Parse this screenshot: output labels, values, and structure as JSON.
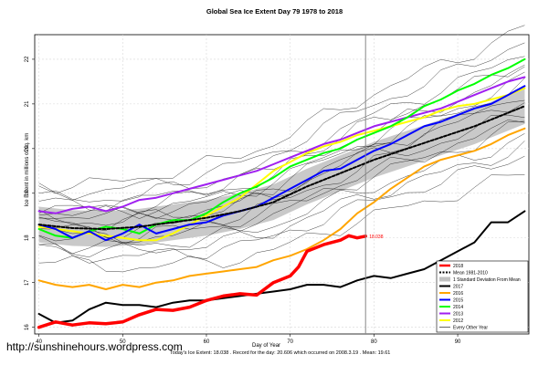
{
  "chart_data": {
    "type": "line",
    "title": "Global Sea Ice Extent Day 79 1978 to 2018",
    "xlabel": "Day of Year",
    "ylabel": "Ice Extent in millions of sq. km",
    "xlim": [
      39.5,
      98.5
    ],
    "ylim": [
      15.85,
      22.55
    ],
    "x_ticks": [
      40,
      50,
      60,
      70,
      80,
      90
    ],
    "y_ticks": [
      16,
      17,
      18,
      19,
      20,
      21,
      22
    ],
    "vline": 79,
    "grid": true,
    "legend_position": "bottom-right",
    "current_label": "18.038",
    "footer": "Today's Ice Extent: 18.038  . Record for the day: 20.606 which occurred on 2008.3.19  . Mean: 19.61",
    "watermark": "http://sunshinehours.wordpress.com",
    "series": [
      {
        "name": "2018",
        "color": "#ff0000",
        "width": 3.5,
        "x": [
          40,
          42,
          44,
          46,
          48,
          50,
          52,
          54,
          56,
          58,
          60,
          62,
          64,
          66,
          68,
          70,
          71,
          72,
          74,
          76,
          77,
          78,
          79
        ],
        "y": [
          16.0,
          16.12,
          16.05,
          16.1,
          16.08,
          16.12,
          16.28,
          16.4,
          16.38,
          16.45,
          16.6,
          16.7,
          16.75,
          16.72,
          17.0,
          17.15,
          17.35,
          17.7,
          17.85,
          17.95,
          18.05,
          18.0,
          18.04
        ]
      },
      {
        "name": "Mean 1981-2010",
        "color": "#000000",
        "width": 2,
        "dash": "3,2",
        "x": [
          40,
          44,
          48,
          52,
          56,
          60,
          64,
          68,
          72,
          76,
          80,
          84,
          88,
          92,
          96,
          98
        ],
        "y": [
          18.3,
          18.22,
          18.2,
          18.25,
          18.35,
          18.45,
          18.6,
          18.8,
          19.15,
          19.45,
          19.75,
          20.0,
          20.25,
          20.5,
          20.8,
          20.95
        ]
      },
      {
        "name": "1 Standard Deviation From Mean",
        "color": "#c0c0c0",
        "band": true,
        "x": [
          40,
          44,
          48,
          52,
          56,
          60,
          64,
          68,
          72,
          76,
          80,
          84,
          88,
          92,
          96,
          98
        ],
        "upper": [
          18.7,
          18.62,
          18.6,
          18.65,
          18.75,
          18.85,
          19.0,
          19.2,
          19.55,
          19.85,
          20.15,
          20.4,
          20.65,
          20.9,
          21.2,
          21.35
        ],
        "lower": [
          17.9,
          17.82,
          17.8,
          17.85,
          17.95,
          18.05,
          18.2,
          18.4,
          18.75,
          19.05,
          19.35,
          19.6,
          19.85,
          20.1,
          20.4,
          20.55
        ]
      },
      {
        "name": "2017",
        "color": "#000000",
        "width": 2,
        "x": [
          40,
          42,
          44,
          46,
          48,
          50,
          52,
          54,
          56,
          58,
          60,
          62,
          64,
          66,
          68,
          70,
          72,
          74,
          76,
          78,
          80,
          82,
          84,
          86,
          88,
          90,
          92,
          94,
          96,
          98
        ],
        "y": [
          16.3,
          16.1,
          16.15,
          16.4,
          16.55,
          16.5,
          16.5,
          16.45,
          16.55,
          16.6,
          16.6,
          16.65,
          16.7,
          16.75,
          16.8,
          16.85,
          16.95,
          16.95,
          16.9,
          17.05,
          17.15,
          17.1,
          17.2,
          17.3,
          17.5,
          17.7,
          17.9,
          18.35,
          18.35,
          18.6
        ]
      },
      {
        "name": "2016",
        "color": "#ffa500",
        "width": 2,
        "x": [
          40,
          42,
          44,
          46,
          48,
          50,
          52,
          54,
          56,
          58,
          60,
          62,
          64,
          66,
          68,
          70,
          72,
          74,
          76,
          78,
          80,
          82,
          84,
          86,
          88,
          90,
          92,
          94,
          96,
          98
        ],
        "y": [
          17.05,
          16.95,
          16.9,
          16.95,
          16.85,
          16.95,
          16.9,
          17.0,
          17.05,
          17.15,
          17.2,
          17.25,
          17.3,
          17.35,
          17.5,
          17.6,
          17.75,
          17.95,
          18.2,
          18.55,
          18.8,
          19.1,
          19.35,
          19.6,
          19.75,
          19.85,
          19.95,
          20.1,
          20.3,
          20.45
        ]
      },
      {
        "name": "2015",
        "color": "#0000ff",
        "width": 2,
        "x": [
          40,
          42,
          44,
          46,
          48,
          50,
          52,
          54,
          56,
          58,
          60,
          62,
          64,
          66,
          68,
          70,
          72,
          74,
          76,
          78,
          80,
          82,
          84,
          86,
          88,
          90,
          92,
          94,
          96,
          98
        ],
        "y": [
          18.3,
          18.2,
          18.0,
          18.15,
          17.95,
          18.1,
          18.3,
          18.1,
          18.2,
          18.3,
          18.35,
          18.5,
          18.6,
          18.7,
          18.9,
          19.1,
          19.3,
          19.5,
          19.55,
          19.75,
          19.95,
          20.1,
          20.3,
          20.5,
          20.6,
          20.75,
          20.9,
          21.0,
          21.2,
          21.4
        ]
      },
      {
        "name": "2014",
        "color": "#00ff00",
        "width": 2,
        "x": [
          40,
          42,
          44,
          46,
          48,
          50,
          52,
          54,
          56,
          58,
          60,
          62,
          64,
          66,
          68,
          70,
          72,
          74,
          76,
          78,
          80,
          82,
          84,
          86,
          88,
          90,
          92,
          94,
          96,
          98
        ],
        "y": [
          18.2,
          18.05,
          18.0,
          18.15,
          18.25,
          18.2,
          18.1,
          18.3,
          18.4,
          18.4,
          18.55,
          18.8,
          19.0,
          19.15,
          19.35,
          19.6,
          19.75,
          19.9,
          20.0,
          20.2,
          20.35,
          20.5,
          20.7,
          20.95,
          21.1,
          21.3,
          21.45,
          21.65,
          21.8,
          22.0
        ]
      },
      {
        "name": "2013",
        "color": "#a020f0",
        "width": 2,
        "x": [
          40,
          42,
          44,
          46,
          48,
          50,
          52,
          54,
          56,
          58,
          60,
          62,
          64,
          66,
          68,
          70,
          72,
          74,
          76,
          78,
          80,
          82,
          84,
          86,
          88,
          90,
          92,
          94,
          96,
          98
        ],
        "y": [
          18.6,
          18.55,
          18.65,
          18.7,
          18.6,
          18.7,
          18.85,
          18.9,
          19.0,
          19.1,
          19.2,
          19.3,
          19.4,
          19.5,
          19.65,
          19.8,
          19.95,
          20.1,
          20.2,
          20.35,
          20.5,
          20.6,
          20.7,
          20.8,
          20.9,
          21.05,
          21.2,
          21.35,
          21.5,
          21.6
        ]
      },
      {
        "name": "2012",
        "color": "#ffff00",
        "width": 2,
        "x": [
          40,
          42,
          44,
          46,
          48,
          50,
          52,
          54,
          56,
          58,
          60,
          62,
          64,
          66,
          68,
          70,
          72,
          74,
          76,
          78,
          80,
          82,
          84,
          86,
          88,
          90,
          92,
          94,
          96,
          98
        ],
        "y": [
          18.25,
          18.2,
          18.15,
          18.1,
          18.05,
          18.0,
          17.95,
          17.95,
          18.1,
          18.3,
          18.5,
          18.7,
          18.9,
          19.2,
          19.5,
          19.7,
          19.9,
          20.05,
          20.15,
          20.3,
          20.4,
          20.5,
          20.6,
          20.7,
          20.85,
          20.95,
          21.0,
          21.1,
          21.2,
          21.35
        ]
      },
      {
        "name": "Every Other Year",
        "color": "#000000",
        "width": 0.6
      }
    ],
    "legend": [
      "2018",
      "Mean 1981-2010",
      "1 Standard Deviation From Mean",
      "2017",
      "2016",
      "2015",
      "2014",
      "2013",
      "2012",
      "Every Other Year"
    ]
  }
}
